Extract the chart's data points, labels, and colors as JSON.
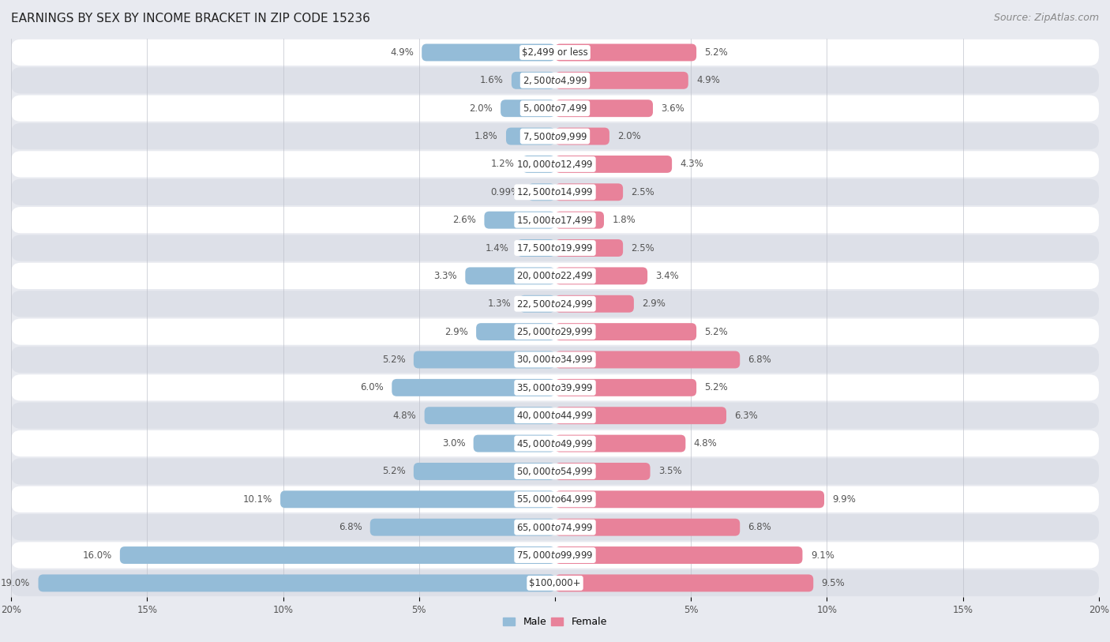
{
  "title": "EARNINGS BY SEX BY INCOME BRACKET IN ZIP CODE 15236",
  "source": "Source: ZipAtlas.com",
  "categories": [
    "$2,499 or less",
    "$2,500 to $4,999",
    "$5,000 to $7,499",
    "$7,500 to $9,999",
    "$10,000 to $12,499",
    "$12,500 to $14,999",
    "$15,000 to $17,499",
    "$17,500 to $19,999",
    "$20,000 to $22,499",
    "$22,500 to $24,999",
    "$25,000 to $29,999",
    "$30,000 to $34,999",
    "$35,000 to $39,999",
    "$40,000 to $44,999",
    "$45,000 to $49,999",
    "$50,000 to $54,999",
    "$55,000 to $64,999",
    "$65,000 to $74,999",
    "$75,000 to $99,999",
    "$100,000+"
  ],
  "male_values": [
    4.9,
    1.6,
    2.0,
    1.8,
    1.2,
    0.99,
    2.6,
    1.4,
    3.3,
    1.3,
    2.9,
    5.2,
    6.0,
    4.8,
    3.0,
    5.2,
    10.1,
    6.8,
    16.0,
    19.0
  ],
  "female_values": [
    5.2,
    4.9,
    3.6,
    2.0,
    4.3,
    2.5,
    1.8,
    2.5,
    3.4,
    2.9,
    5.2,
    6.8,
    5.2,
    6.3,
    4.8,
    3.5,
    9.9,
    6.8,
    9.1,
    9.5
  ],
  "male_color": "#94bcd8",
  "female_color": "#e8829a",
  "male_label": "Male",
  "female_label": "Female",
  "xlim": 20.0,
  "bg_color": "#e8eaf0",
  "row_color_odd": "#ffffff",
  "row_color_even": "#dde0e8",
  "title_fontsize": 11,
  "source_fontsize": 9,
  "label_fontsize": 8.5,
  "value_fontsize": 8.5,
  "tick_fontsize": 8.5
}
